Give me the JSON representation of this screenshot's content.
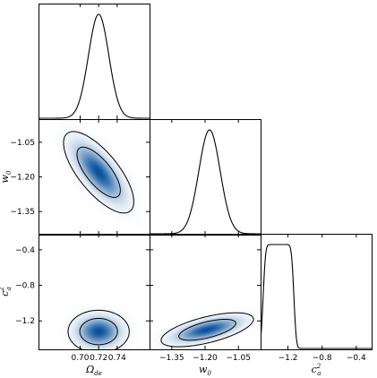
{
  "chart_data": {
    "type": "corner",
    "grid": false,
    "parameters": [
      {
        "key": "omega",
        "label_main": "Ω",
        "label_sub": "de",
        "label_sup": "",
        "range": [
          0.655,
          0.775
        ],
        "ticks": [
          {
            "v": 0.7,
            "t": "0.70"
          },
          {
            "v": 0.72,
            "t": "0.72"
          },
          {
            "v": 0.74,
            "t": "0.74"
          }
        ]
      },
      {
        "key": "w0",
        "label_main": "w",
        "label_sub": "0",
        "label_sup": "",
        "range": [
          -1.45,
          -0.95
        ],
        "ticks": [
          {
            "v": -1.35,
            "t": "−1.35"
          },
          {
            "v": -1.2,
            "t": "−1.20"
          },
          {
            "v": -1.05,
            "t": "−1.05"
          }
        ]
      },
      {
        "key": "c2a",
        "label_main": "c",
        "label_sub": "a",
        "label_sup": "2",
        "range": [
          -1.52,
          -0.22
        ],
        "ticks": [
          {
            "v": -1.2,
            "t": "−1.2"
          },
          {
            "v": -0.8,
            "t": "−0.8"
          },
          {
            "v": -0.4,
            "t": "−0.4"
          }
        ]
      }
    ],
    "marginals": [
      {
        "param": "omega",
        "shape": "gaussian",
        "mean": 0.72,
        "sigma": 0.011
      },
      {
        "param": "w0",
        "shape": "gaussian",
        "mean": -1.18,
        "sigma": 0.048
      },
      {
        "param": "c2a",
        "shape": "plateau",
        "low": -1.49,
        "high": -1.13,
        "edge_width": 0.032
      }
    ],
    "joints": [
      {
        "x": "omega",
        "y": "w0",
        "x_mean": 0.72,
        "y_mean": -1.18,
        "x_sigma": 0.0155,
        "y_sigma": 0.072,
        "correlation": -0.72,
        "contours": "68% and 95%"
      },
      {
        "x": "omega",
        "y": "c2a",
        "x_mean": 0.72,
        "y_mean": -1.32,
        "x_sigma": 0.0135,
        "y_sigma": 0.098,
        "correlation": 0.0,
        "contours": "68% and 95%"
      },
      {
        "x": "w0",
        "y": "c2a",
        "x_mean": -1.19,
        "y_mean": -1.3,
        "x_sigma": 0.085,
        "y_sigma": 0.078,
        "correlation": 0.62,
        "contours": "68% and 95%"
      }
    ],
    "colors": {
      "density": "#08519c",
      "contour": "#000000",
      "frame": "#000000"
    }
  }
}
